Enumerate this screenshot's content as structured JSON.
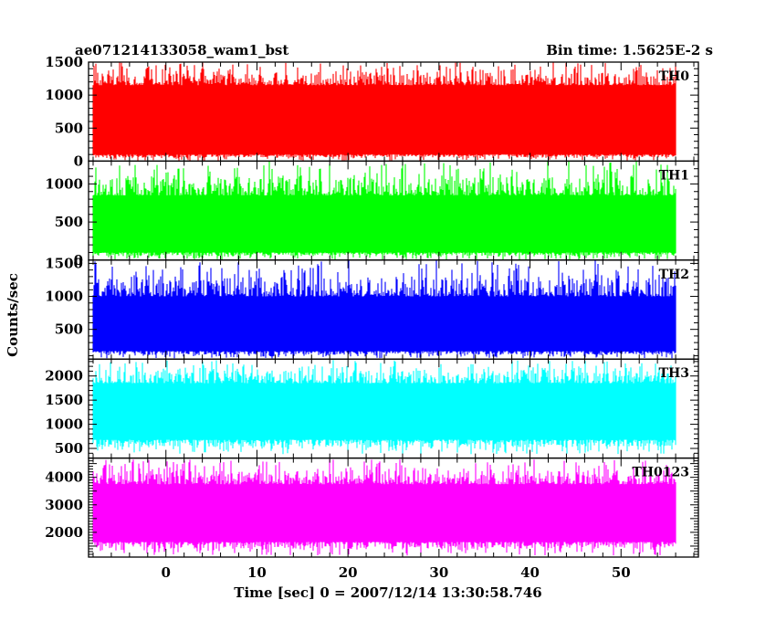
{
  "chart_data": {
    "type": "line",
    "title_left": "ae071214133058_wam1_bst",
    "title_right": "Bin time: 1.5625E-2 s",
    "xlabel": "Time [sec] 0 = 2007/12/14 13:30:58.746",
    "ylabel": "Counts/sec",
    "xlim": [
      -8.5,
      58.5
    ],
    "data_x_range": [
      -8,
      56
    ],
    "x_ticks": [
      0,
      10,
      20,
      30,
      40,
      50
    ],
    "panels": [
      {
        "name": "TH0",
        "color": "#ff0000",
        "ylim": [
          0,
          1500
        ],
        "y_ticks": [
          0,
          500,
          1000,
          1500
        ],
        "band_low": 100,
        "band_high": 1150,
        "spike_min": 5,
        "spike_max": 1500
      },
      {
        "name": "TH1",
        "color": "#00ff00",
        "ylim": [
          0,
          1300
        ],
        "y_ticks": [
          0,
          500,
          1000
        ],
        "band_low": 100,
        "band_high": 850,
        "spike_min": 0,
        "spike_max": 1300
      },
      {
        "name": "TH2",
        "color": "#0000ff",
        "ylim": [
          50,
          1550
        ],
        "y_ticks": [
          500,
          1000,
          1500
        ],
        "band_low": 170,
        "band_high": 1000,
        "spike_min": 60,
        "spike_max": 1550
      },
      {
        "name": "TH3",
        "color": "#00ffff",
        "ylim": [
          300,
          2350
        ],
        "y_ticks": [
          500,
          1000,
          1500,
          2000
        ],
        "band_low": 680,
        "band_high": 1850,
        "spike_min": 380,
        "spike_max": 2330
      },
      {
        "name": "TH0123",
        "color": "#ff00ff",
        "ylim": [
          1100,
          4700
        ],
        "y_ticks": [
          2000,
          3000,
          4000
        ],
        "band_low": 1650,
        "band_high": 3750,
        "spike_min": 1150,
        "spike_max": 4650
      }
    ]
  }
}
